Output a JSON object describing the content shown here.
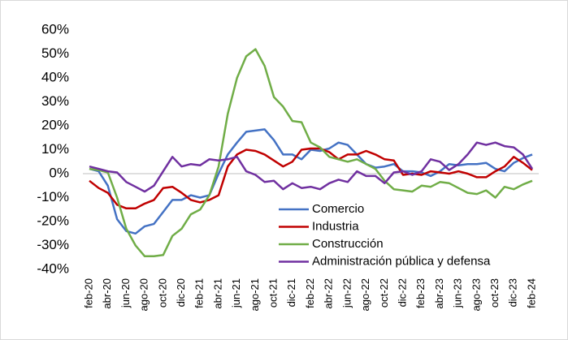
{
  "chart_data": {
    "type": "line",
    "categories": [
      "feb-20",
      null,
      "abr-20",
      null,
      "jun-20",
      null,
      "ago-20",
      null,
      "oct-20",
      null,
      "dic-20",
      null,
      "feb-21",
      null,
      "abr-21",
      null,
      "jun-21",
      null,
      "ago-21",
      null,
      "oct-21",
      null,
      "dic-21",
      null,
      "feb-22",
      null,
      "abr-22",
      null,
      "jun-22",
      null,
      "ago-22",
      null,
      "oct-22",
      null,
      "dic-22",
      null,
      "feb-23",
      null,
      "abr-23",
      null,
      "jun-23",
      null,
      "ago-23",
      null,
      "oct-23",
      null,
      "dic-23",
      null,
      "feb-24"
    ],
    "series": [
      {
        "name": "Comercio",
        "color": "#4472c4",
        "values": [
          2,
          1,
          -5,
          -19,
          -24,
          -25,
          -22,
          -21,
          -16,
          -11,
          -11,
          -9,
          -10,
          -9,
          0,
          8,
          13,
          17.5,
          18,
          18.5,
          14,
          8,
          8,
          6,
          10,
          9.5,
          10.5,
          13,
          12,
          8,
          4,
          2.5,
          3,
          4,
          1,
          1,
          0.5,
          -1,
          1,
          4,
          3.5,
          4,
          4,
          4.5,
          2,
          1,
          4.5,
          6.5,
          8
        ]
      },
      {
        "name": "Industria",
        "color": "#c00000",
        "values": [
          -3,
          -6,
          -8,
          -13,
          -14.5,
          -14.5,
          -12.5,
          -11,
          -6,
          -5.5,
          -8,
          -11,
          -12,
          -11,
          -9,
          3,
          8,
          10,
          9.5,
          8,
          5.5,
          3,
          5,
          10,
          10.5,
          10.5,
          9,
          6,
          8,
          8,
          9.5,
          8,
          6,
          5.5,
          -0.5,
          0,
          -0.5,
          1,
          0.5,
          0,
          1,
          0,
          -1.5,
          -1.5,
          1,
          3,
          7,
          4.5,
          1.5
        ]
      },
      {
        "name": "Construcción",
        "color": "#70ad47",
        "values": [
          2,
          1.5,
          0.5,
          -10,
          -23,
          -30,
          -34.5,
          -34.5,
          -34,
          -26,
          -23,
          -17,
          -15,
          -9,
          3,
          25,
          40,
          49,
          52,
          45,
          32,
          28,
          22,
          21.5,
          13,
          11,
          7,
          6,
          5,
          6,
          4,
          2,
          -3,
          -6.5,
          -7,
          -7.5,
          -5,
          -5.5,
          -3.5,
          -4,
          -6,
          -8,
          -8.5,
          -7,
          -10,
          -5.5,
          -6.5,
          -4.5,
          -3
        ]
      },
      {
        "name": "Administración pública y defensa",
        "color": "#7030a0",
        "values": [
          3,
          2,
          1,
          0.5,
          -3.5,
          -5.5,
          -7.5,
          -5,
          1,
          7,
          3,
          4,
          3.5,
          6,
          5.5,
          6,
          7,
          1,
          -0.5,
          -3.5,
          -3,
          -6.5,
          -4,
          -6,
          -5.5,
          -6.5,
          -4,
          -2.5,
          -3.5,
          1,
          -1,
          -1,
          -4,
          0.5,
          1,
          -0.5,
          1,
          6,
          5,
          1.5,
          4,
          8,
          13,
          12,
          13,
          11.5,
          11,
          8,
          2
        ]
      }
    ],
    "ylim": [
      -40,
      60
    ],
    "yticks": [
      {
        "value": -40,
        "label": "-40%"
      },
      {
        "value": -30,
        "label": "-30%"
      },
      {
        "value": -20,
        "label": "-20%"
      },
      {
        "value": -10,
        "label": "-10%"
      },
      {
        "value": 0,
        "label": "0%"
      },
      {
        "value": 10,
        "label": "10%"
      },
      {
        "value": 20,
        "label": "20%"
      },
      {
        "value": 30,
        "label": "30%"
      },
      {
        "value": 40,
        "label": "40%"
      },
      {
        "value": 50,
        "label": "50%"
      },
      {
        "value": 60,
        "label": "60%"
      }
    ]
  }
}
